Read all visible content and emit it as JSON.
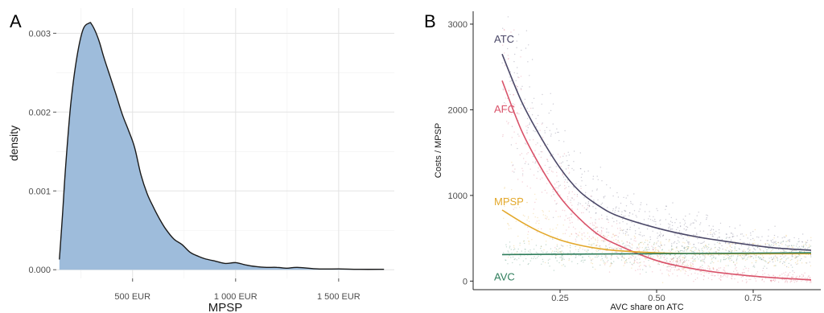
{
  "chart_data": [
    {
      "panel_label": "A",
      "type": "area",
      "xlabel": "MPSP",
      "ylabel": "density",
      "xlim": [
        130,
        1770
      ],
      "ylim": [
        -0.00011,
        0.00332
      ],
      "x_ticks": [
        500,
        1000,
        1500
      ],
      "x_tick_labels": [
        "500  EUR",
        "1 000  EUR",
        "1 500  EUR"
      ],
      "y_ticks": [
        0,
        0.001,
        0.002,
        0.003
      ],
      "y_tick_labels": [
        "0.000",
        "0.001",
        "0.002",
        "0.003"
      ],
      "x_minor": [
        250,
        750,
        1250
      ],
      "y_minor": [
        0.0005,
        0.0015,
        0.0025
      ],
      "grid": true,
      "fill_color": "#9ebcdb",
      "line_color": "#1a1a1a",
      "x": [
        145,
        160,
        175,
        200,
        230,
        260,
        290,
        300,
        320,
        340,
        360,
        390,
        420,
        450,
        480,
        510,
        540,
        570,
        600,
        630,
        660,
        700,
        740,
        780,
        820,
        850,
        900,
        950,
        1000,
        1050,
        1100,
        1150,
        1200,
        1250,
        1300,
        1400,
        1500,
        1600,
        1720
      ],
      "y": [
        0.00013,
        0.0007,
        0.0013,
        0.0021,
        0.0027,
        0.00305,
        0.00313,
        0.00312,
        0.00302,
        0.00288,
        0.0027,
        0.00246,
        0.00222,
        0.00197,
        0.00177,
        0.00155,
        0.00121,
        0.00097,
        0.0008,
        0.00065,
        0.00052,
        0.00039,
        0.00032,
        0.00022,
        0.00017,
        0.00014,
        0.00011,
        8e-05,
        9e-05,
        6e-05,
        4e-05,
        3e-05,
        3e-05,
        2e-05,
        3e-05,
        1e-05,
        1e-05,
        5e-06,
        5e-06
      ]
    },
    {
      "panel_label": "B",
      "type": "scatter",
      "xlabel": "AVC share on ATC",
      "ylabel": "Costs / MPSP",
      "xlim": [
        0.025,
        0.925
      ],
      "ylim": [
        -100,
        3150
      ],
      "x_ticks": [
        0.25,
        0.5,
        0.75
      ],
      "x_tick_labels": [
        "0.25",
        "0.50",
        "0.75"
      ],
      "y_ticks": [
        0,
        1000,
        2000,
        3000
      ],
      "y_tick_labels": [
        "0",
        "1000",
        "2000",
        "3000"
      ],
      "grid": false,
      "series": [
        {
          "name": "ATC",
          "color": "#4b4868",
          "x": [
            0.1,
            0.15,
            0.2,
            0.25,
            0.3,
            0.35,
            0.4,
            0.5,
            0.6,
            0.7,
            0.8,
            0.9
          ],
          "y": [
            2650,
            2100,
            1680,
            1320,
            1050,
            880,
            760,
            620,
            520,
            450,
            390,
            360
          ]
        },
        {
          "name": "AFC",
          "color": "#d9536a",
          "x": [
            0.1,
            0.15,
            0.2,
            0.25,
            0.3,
            0.35,
            0.4,
            0.5,
            0.6,
            0.7,
            0.8,
            0.9
          ],
          "y": [
            2340,
            1760,
            1330,
            980,
            730,
            540,
            420,
            240,
            140,
            80,
            40,
            15
          ]
        },
        {
          "name": "MPSP",
          "color": "#e3a82b",
          "x": [
            0.1,
            0.15,
            0.2,
            0.25,
            0.3,
            0.35,
            0.4,
            0.5,
            0.6,
            0.7,
            0.8,
            0.9
          ],
          "y": [
            830,
            690,
            570,
            480,
            420,
            380,
            355,
            330,
            320,
            320,
            320,
            320
          ]
        },
        {
          "name": "AVC",
          "color": "#2e7d5b",
          "x": [
            0.1,
            0.9
          ],
          "y": [
            310,
            330
          ]
        }
      ]
    }
  ]
}
